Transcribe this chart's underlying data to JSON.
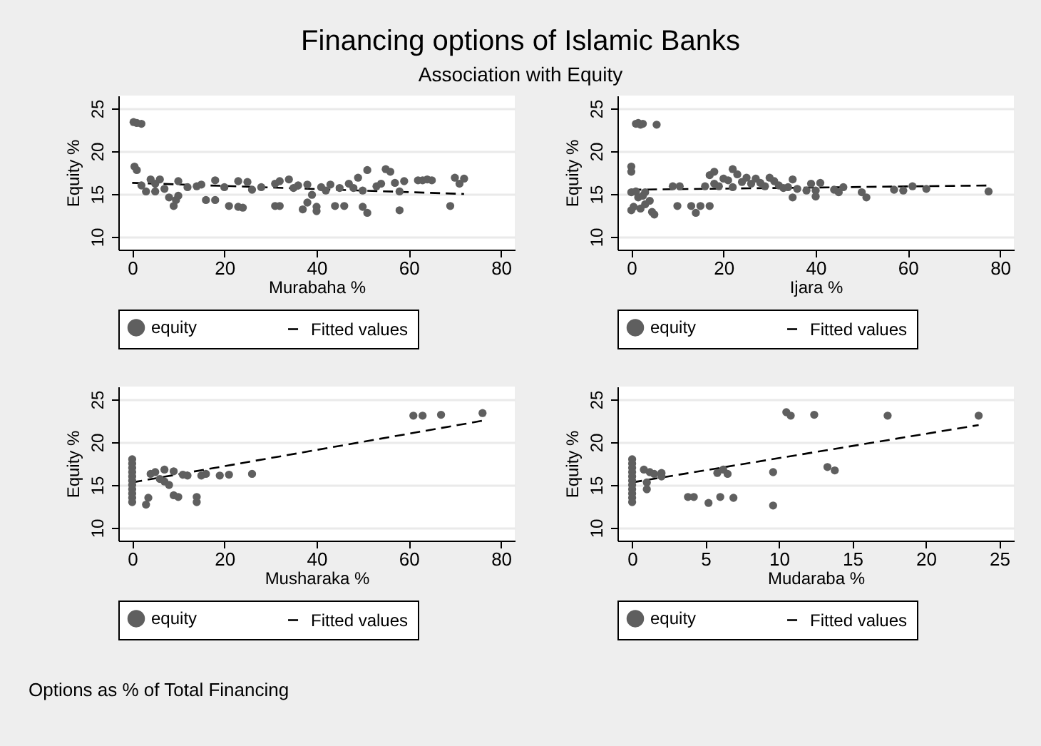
{
  "chart_data": [
    {
      "type": "scatter",
      "title": "Financing options of Islamic Banks",
      "subtitle": "Association with Equity",
      "xlabel": "Murabaha %",
      "ylabel": "Equity %",
      "xlim": [
        -3,
        83
      ],
      "ylim": [
        8.5,
        26.5
      ],
      "xticks": [
        0,
        20,
        40,
        60,
        80
      ],
      "yticks": [
        10,
        15,
        20,
        25
      ],
      "grid": "y",
      "legend": "bottom",
      "series": [
        {
          "name": "equity",
          "marker": "circle",
          "color": "#5f5f5f",
          "x": [
            0.3,
            1,
            2,
            0.5,
            1,
            2,
            3,
            4,
            5,
            6,
            5,
            7,
            8,
            9,
            9.5,
            10,
            10,
            12,
            14,
            15,
            16,
            18,
            18,
            20,
            21,
            23,
            23,
            24,
            25,
            26,
            28,
            31,
            31,
            32,
            32,
            34,
            35,
            36,
            37,
            38,
            38,
            39,
            40,
            40,
            41,
            42,
            43,
            44,
            45,
            46,
            47,
            48,
            49,
            50,
            50,
            51,
            51,
            53,
            54,
            55,
            56,
            57,
            58,
            58,
            59,
            62,
            63,
            64,
            65,
            69,
            70,
            71,
            72
          ],
          "values": [
            23.4,
            23.3,
            23.2,
            18.2,
            17.8,
            16,
            15.3,
            16.7,
            16.2,
            16.7,
            15.3,
            15.6,
            14.6,
            13.6,
            14.3,
            16.5,
            14.8,
            15.8,
            15.9,
            16.1,
            14.3,
            14.3,
            16.6,
            15.8,
            13.6,
            13.5,
            16.5,
            13.4,
            16.4,
            15.5,
            15.8,
            16.2,
            13.6,
            16.5,
            13.6,
            16.7,
            15.7,
            16,
            13.2,
            14,
            16.1,
            14.9,
            13.5,
            13,
            15.8,
            15.4,
            16.1,
            13.6,
            15.7,
            13.6,
            16.2,
            15.7,
            16.9,
            15.4,
            13.5,
            12.8,
            17.8,
            15.9,
            16.2,
            17.9,
            17.6,
            16.3,
            15.3,
            13.1,
            16.5,
            16.6,
            16.6,
            16.7,
            16.6,
            13.6,
            16.9,
            16.2,
            16.8
          ]
        },
        {
          "name": "Fitted values",
          "type": "line",
          "line_style": "dashed",
          "color": "#000000",
          "x": [
            0,
            72
          ],
          "values": [
            16.3,
            15
          ]
        }
      ]
    },
    {
      "type": "scatter",
      "xlabel": "Ijara %",
      "ylabel": "Equity %",
      "xlim": [
        -3,
        83
      ],
      "ylim": [
        8.5,
        26.5
      ],
      "xticks": [
        0,
        20,
        40,
        60,
        80
      ],
      "yticks": [
        10,
        15,
        20,
        25
      ],
      "grid": "y",
      "legend": "bottom",
      "series": [
        {
          "name": "equity",
          "marker": "circle",
          "color": "#5f5f5f",
          "x": [
            0,
            0,
            0,
            0,
            0.5,
            1,
            1.5,
            2,
            2.5,
            5.5,
            1,
            1.5,
            2,
            2.5,
            3,
            3,
            4,
            4.5,
            5,
            9,
            10,
            10.5,
            13,
            14,
            15,
            16,
            17,
            17,
            18,
            18,
            19,
            20,
            21,
            22,
            22,
            23,
            24,
            25,
            26,
            27,
            28,
            29,
            30,
            31,
            32,
            33,
            34,
            35,
            35,
            36,
            38,
            39,
            40,
            40,
            41,
            44,
            45,
            46,
            50,
            51,
            57,
            59,
            61,
            64,
            77.5
          ],
          "values": [
            18.2,
            17.6,
            15.2,
            13.1,
            13.5,
            23.2,
            23.3,
            23.1,
            23.2,
            23.1,
            15.3,
            14.6,
            13.3,
            14.8,
            13.8,
            15.2,
            14.2,
            12.9,
            12.6,
            15.9,
            13.6,
            15.9,
            13.6,
            12.8,
            13.6,
            15.9,
            13.6,
            17.2,
            17.6,
            16.2,
            15.9,
            16.8,
            16.6,
            17.9,
            15.8,
            17.3,
            16.4,
            16.9,
            16.2,
            16.8,
            16.3,
            15.9,
            16.9,
            16.5,
            16,
            15.7,
            15.8,
            16.7,
            14.6,
            15.6,
            15.4,
            16.2,
            15.4,
            14.7,
            16.3,
            15.5,
            15.2,
            15.8,
            15.2,
            14.6,
            15.5,
            15.4,
            15.9,
            15.6,
            15.3
          ]
        },
        {
          "name": "Fitted values",
          "type": "line",
          "line_style": "dashed",
          "color": "#000000",
          "x": [
            0,
            78
          ],
          "values": [
            15.5,
            16
          ]
        }
      ]
    },
    {
      "type": "scatter",
      "xlabel": "Musharaka %",
      "ylabel": "Equity %",
      "xlim": [
        -3,
        83
      ],
      "ylim": [
        8.5,
        26.5
      ],
      "xticks": [
        0,
        20,
        40,
        60,
        80
      ],
      "yticks": [
        10,
        15,
        20,
        25
      ],
      "grid": "y",
      "legend": "bottom",
      "series": [
        {
          "name": "equity",
          "marker": "circle",
          "color": "#5f5f5f",
          "x": [
            0,
            0,
            0,
            0,
            0,
            0,
            0,
            0,
            0,
            0,
            0,
            3,
            3.5,
            4,
            5,
            6,
            7,
            7,
            8,
            9,
            9,
            10,
            11,
            12,
            14,
            14,
            15,
            16,
            19,
            21,
            26,
            61,
            63,
            67,
            76
          ],
          "values": [
            18,
            17.5,
            17,
            16.5,
            16,
            15.5,
            15,
            14.5,
            14,
            13.5,
            13,
            12.7,
            13.5,
            16.3,
            16.5,
            15.7,
            16.8,
            15.4,
            15,
            16.6,
            13.8,
            13.6,
            16.2,
            16.1,
            13.6,
            13,
            16.1,
            16.3,
            16.1,
            16.2,
            16.3,
            23.1,
            23.1,
            23.2,
            23.4
          ]
        },
        {
          "name": "Fitted values",
          "type": "line",
          "line_style": "dashed",
          "color": "#000000",
          "x": [
            0,
            77
          ],
          "values": [
            15.3,
            22.6
          ]
        }
      ]
    },
    {
      "type": "scatter",
      "xlabel": "Mudaraba %",
      "ylabel": "Equity %",
      "xlim": [
        -1,
        26
      ],
      "ylim": [
        8.5,
        26.5
      ],
      "xticks": [
        0,
        5,
        10,
        15,
        20,
        25
      ],
      "yticks": [
        10,
        15,
        20,
        25
      ],
      "grid": "y",
      "legend": "bottom",
      "annotations": [
        "Options as % of Total Financing"
      ],
      "series": [
        {
          "name": "equity",
          "marker": "circle",
          "color": "#5f5f5f",
          "x": [
            0,
            0,
            0,
            0,
            0,
            0,
            0,
            0,
            0,
            0,
            0,
            0.8,
            1,
            1,
            1.2,
            1.5,
            2,
            2,
            3.8,
            4.2,
            5.2,
            5.8,
            6,
            6.2,
            6.5,
            6.9,
            9.6,
            9.6,
            10.5,
            10.8,
            12.4,
            13.3,
            13.8,
            17.4,
            23.6
          ],
          "values": [
            18,
            17.5,
            17,
            16.5,
            16,
            15.5,
            15,
            14.5,
            14,
            13.5,
            13,
            16.8,
            15.3,
            14.5,
            16.5,
            16.3,
            16.4,
            16,
            13.6,
            13.6,
            12.9,
            16.4,
            13.6,
            16.8,
            16.3,
            13.5,
            12.6,
            16.5,
            23.5,
            23.1,
            23.2,
            17.1,
            16.7,
            23.1,
            23.1
          ]
        },
        {
          "name": "Fitted values",
          "type": "line",
          "line_style": "dashed",
          "color": "#000000",
          "x": [
            0,
            23.6
          ],
          "values": [
            15.3,
            22
          ]
        }
      ]
    }
  ]
}
